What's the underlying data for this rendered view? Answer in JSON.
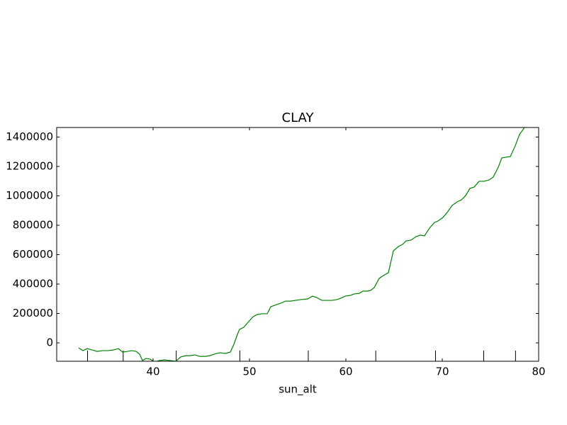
{
  "chart_data": {
    "type": "line",
    "title": "CLAY",
    "xlabel": "sun_alt",
    "xlim": [
      30,
      80
    ],
    "xticks": [
      40,
      50,
      60,
      70,
      80
    ],
    "ylim": [
      -125000,
      1465000
    ],
    "yticks": [
      0,
      200000,
      400000,
      600000,
      800000,
      1000000,
      1200000,
      1400000
    ],
    "rug_x": [
      33.2,
      36.9,
      42.4,
      49.0,
      56.1,
      63.1,
      69.3,
      74.3,
      77.6
    ],
    "series": [
      {
        "color": "#008000",
        "x": [
          32.28,
          32.72,
          33.16,
          33.68,
          34.19,
          34.78,
          35.29,
          35.88,
          36.4,
          36.84,
          37.35,
          37.79,
          38.24,
          38.6,
          38.9,
          39.26,
          39.71,
          40.15,
          40.66,
          41.18,
          41.76,
          42.35,
          42.87,
          43.38,
          43.82,
          44.34,
          44.85,
          45.44,
          45.88,
          46.32,
          46.91,
          47.5,
          48.01,
          48.38,
          48.75,
          48.97,
          49.41,
          49.85,
          50.37,
          50.81,
          51.32,
          51.84,
          52.21,
          52.79,
          53.24,
          53.75,
          54.26,
          54.78,
          55.29,
          56.03,
          56.54,
          56.99,
          57.5,
          58.01,
          58.53,
          59.04,
          59.49,
          59.93,
          60.44,
          60.88,
          61.4,
          61.76,
          62.21,
          62.57,
          62.94,
          63.46,
          63.9,
          64.41,
          64.93,
          65.44,
          65.88,
          66.25,
          66.76,
          67.28,
          67.72,
          68.16,
          68.68,
          69.19,
          69.56,
          70.07,
          70.51,
          71.03,
          71.54,
          71.99,
          72.43,
          72.87,
          73.31,
          73.82,
          74.34,
          74.85,
          75.29,
          75.81,
          76.18,
          76.62,
          77.06,
          77.57,
          78.01,
          78.53
        ],
        "values": [
          -34000,
          -53000,
          -39000,
          -48000,
          -58000,
          -53000,
          -53000,
          -48000,
          -39000,
          -63000,
          -58000,
          -53000,
          -58000,
          -77000,
          -120000,
          -106000,
          -111000,
          -130000,
          -120000,
          -116000,
          -120000,
          -125000,
          -96000,
          -87000,
          -87000,
          -82000,
          -92000,
          -92000,
          -87000,
          -77000,
          -67000,
          -72000,
          -63000,
          -10000,
          58000,
          92000,
          106000,
          140000,
          178000,
          193000,
          198000,
          198000,
          246000,
          260000,
          270000,
          284000,
          284000,
          289000,
          294000,
          299000,
          318000,
          308000,
          289000,
          289000,
          289000,
          294000,
          304000,
          318000,
          323000,
          333000,
          337000,
          352000,
          352000,
          357000,
          376000,
          439000,
          458000,
          477000,
          626000,
          655000,
          670000,
          694000,
          699000,
          723000,
          733000,
          728000,
          781000,
          819000,
          829000,
          853000,
          887000,
          935000,
          959000,
          973000,
          1002000,
          1051000,
          1060000,
          1099000,
          1099000,
          1108000,
          1128000,
          1195000,
          1258000,
          1263000,
          1267000,
          1340000,
          1417000,
          1465000
        ]
      }
    ]
  }
}
